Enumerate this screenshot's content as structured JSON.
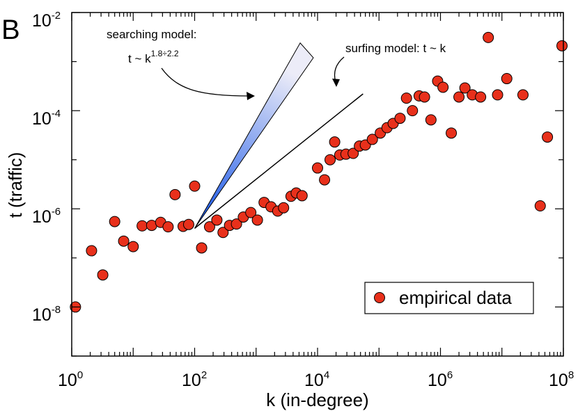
{
  "panel_label": "B",
  "colors": {
    "point_fill": "#e8301b",
    "point_stroke": "#000000",
    "wedge_light": "#ececf8",
    "wedge_dark": "#1050e6"
  },
  "chart_data": {
    "type": "scatter",
    "xscale": "log",
    "yscale": "log",
    "xlabel": "k (in-degree)",
    "ylabel": "t (traffic)",
    "xlim": [
      1,
      100000000
    ],
    "ylim": [
      1e-09,
      0.01
    ],
    "x_ticks": [
      {
        "base": "10",
        "exp": "0",
        "value": 1
      },
      {
        "base": "10",
        "exp": "2",
        "value": 100
      },
      {
        "base": "10",
        "exp": "4",
        "value": 10000
      },
      {
        "base": "10",
        "exp": "6",
        "value": 1000000
      },
      {
        "base": "10",
        "exp": "8",
        "value": 100000000
      }
    ],
    "y_ticks": [
      {
        "base": "10",
        "exp": "-8",
        "value": 1e-08
      },
      {
        "base": "10",
        "exp": "-6",
        "value": 1e-06
      },
      {
        "base": "10",
        "exp": "-4",
        "value": 0.0001
      },
      {
        "base": "10",
        "exp": "-2",
        "value": 0.01
      }
    ],
    "legend": {
      "label": "empirical data",
      "position": "bottom-right"
    },
    "series": [
      {
        "name": "empirical data",
        "points": [
          [
            1.15,
            1e-08
          ],
          [
            2.1,
            1.4e-07
          ],
          [
            3.2,
            4.5e-08
          ],
          [
            5.0,
            5.5e-07
          ],
          [
            7.0,
            2.2e-07
          ],
          [
            10.0,
            1.7e-07
          ],
          [
            14,
            4.5e-07
          ],
          [
            20,
            4.6e-07
          ],
          [
            28,
            5.3e-07
          ],
          [
            37,
            4.3e-07
          ],
          [
            48,
            1.95e-06
          ],
          [
            65,
            4.4e-07
          ],
          [
            80,
            4.8e-07
          ],
          [
            100,
            2.9e-06
          ],
          [
            130,
            1.6e-07
          ],
          [
            175,
            4.3e-07
          ],
          [
            230,
            5.9e-07
          ],
          [
            290,
            3.3e-07
          ],
          [
            370,
            4.6e-07
          ],
          [
            480,
            4.9e-07
          ],
          [
            620,
            6.8e-07
          ],
          [
            820,
            8.4e-07
          ],
          [
            1050,
            5.9e-07
          ],
          [
            1350,
            1.35e-06
          ],
          [
            1750,
            1.1e-06
          ],
          [
            2250,
            9e-07
          ],
          [
            2800,
            1.05e-06
          ],
          [
            3700,
            1.8e-06
          ],
          [
            4500,
            2.1e-06
          ],
          [
            5600,
            1.85e-06
          ],
          [
            10000,
            6.8e-06
          ],
          [
            13000,
            3.9e-06
          ],
          [
            16000,
            1e-05
          ],
          [
            19000,
            2.3e-05
          ],
          [
            23000,
            1.25e-05
          ],
          [
            29000,
            1.3e-05
          ],
          [
            38000,
            1.35e-05
          ],
          [
            48000,
            1.9e-05
          ],
          [
            60000,
            2e-05
          ],
          [
            78000,
            2.6e-05
          ],
          [
            105000,
            3.5e-05
          ],
          [
            135000,
            4.5e-05
          ],
          [
            170000,
            5.5e-05
          ],
          [
            220000,
            7e-05
          ],
          [
            280000,
            0.00018
          ],
          [
            350000,
            0.0001
          ],
          [
            450000,
            0.0002
          ],
          [
            550000,
            0.00019
          ],
          [
            700000,
            6.5e-05
          ],
          [
            900000,
            0.0004
          ],
          [
            1100000,
            0.0003
          ],
          [
            1500000,
            3.5e-05
          ],
          [
            2000000,
            0.00019
          ],
          [
            2500000,
            0.00029
          ],
          [
            3300000,
            0.00021
          ],
          [
            4500000,
            0.00019
          ],
          [
            6000000,
            0.0031
          ],
          [
            8500000,
            0.00021
          ],
          [
            12000000,
            0.00045
          ],
          [
            22000000,
            0.00021
          ],
          [
            42000000,
            1.15e-06
          ],
          [
            55000000,
            2.9e-05
          ],
          [
            95000000,
            0.0021
          ]
        ]
      }
    ],
    "annotations": [
      {
        "id": "searching",
        "text_line1": "searching model:",
        "text_line2_base": "t ~ k",
        "text_line2_exp": "1.8÷2.2",
        "wedge_origin": [
          100,
          4e-07
        ],
        "slope_low": 1.8,
        "slope_high": 2.2,
        "slope_range": "1.8÷2.2"
      },
      {
        "id": "surfing",
        "text": "surfing model: t ~ k",
        "line_start": [
          100,
          4e-07
        ],
        "line_end": [
          55000,
          0.00022
        ],
        "slope": 1
      }
    ]
  }
}
